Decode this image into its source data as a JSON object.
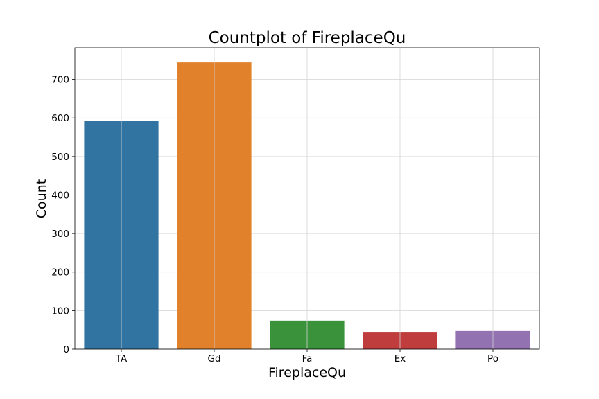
{
  "chart_data": {
    "type": "bar",
    "title": "Countplot of FireplaceQu",
    "xlabel": "FireplaceQu",
    "ylabel": "Count",
    "categories": [
      "TA",
      "Gd",
      "Fa",
      "Ex",
      "Po"
    ],
    "values": [
      592,
      744,
      74,
      43,
      47
    ],
    "colors": [
      "#3274a1",
      "#e1812c",
      "#3a923a",
      "#c03d3e",
      "#9372b2"
    ],
    "yticks": [
      0,
      100,
      200,
      300,
      400,
      500,
      600,
      700
    ],
    "ylim": [
      0,
      782
    ],
    "grid": true,
    "legend": "none"
  }
}
